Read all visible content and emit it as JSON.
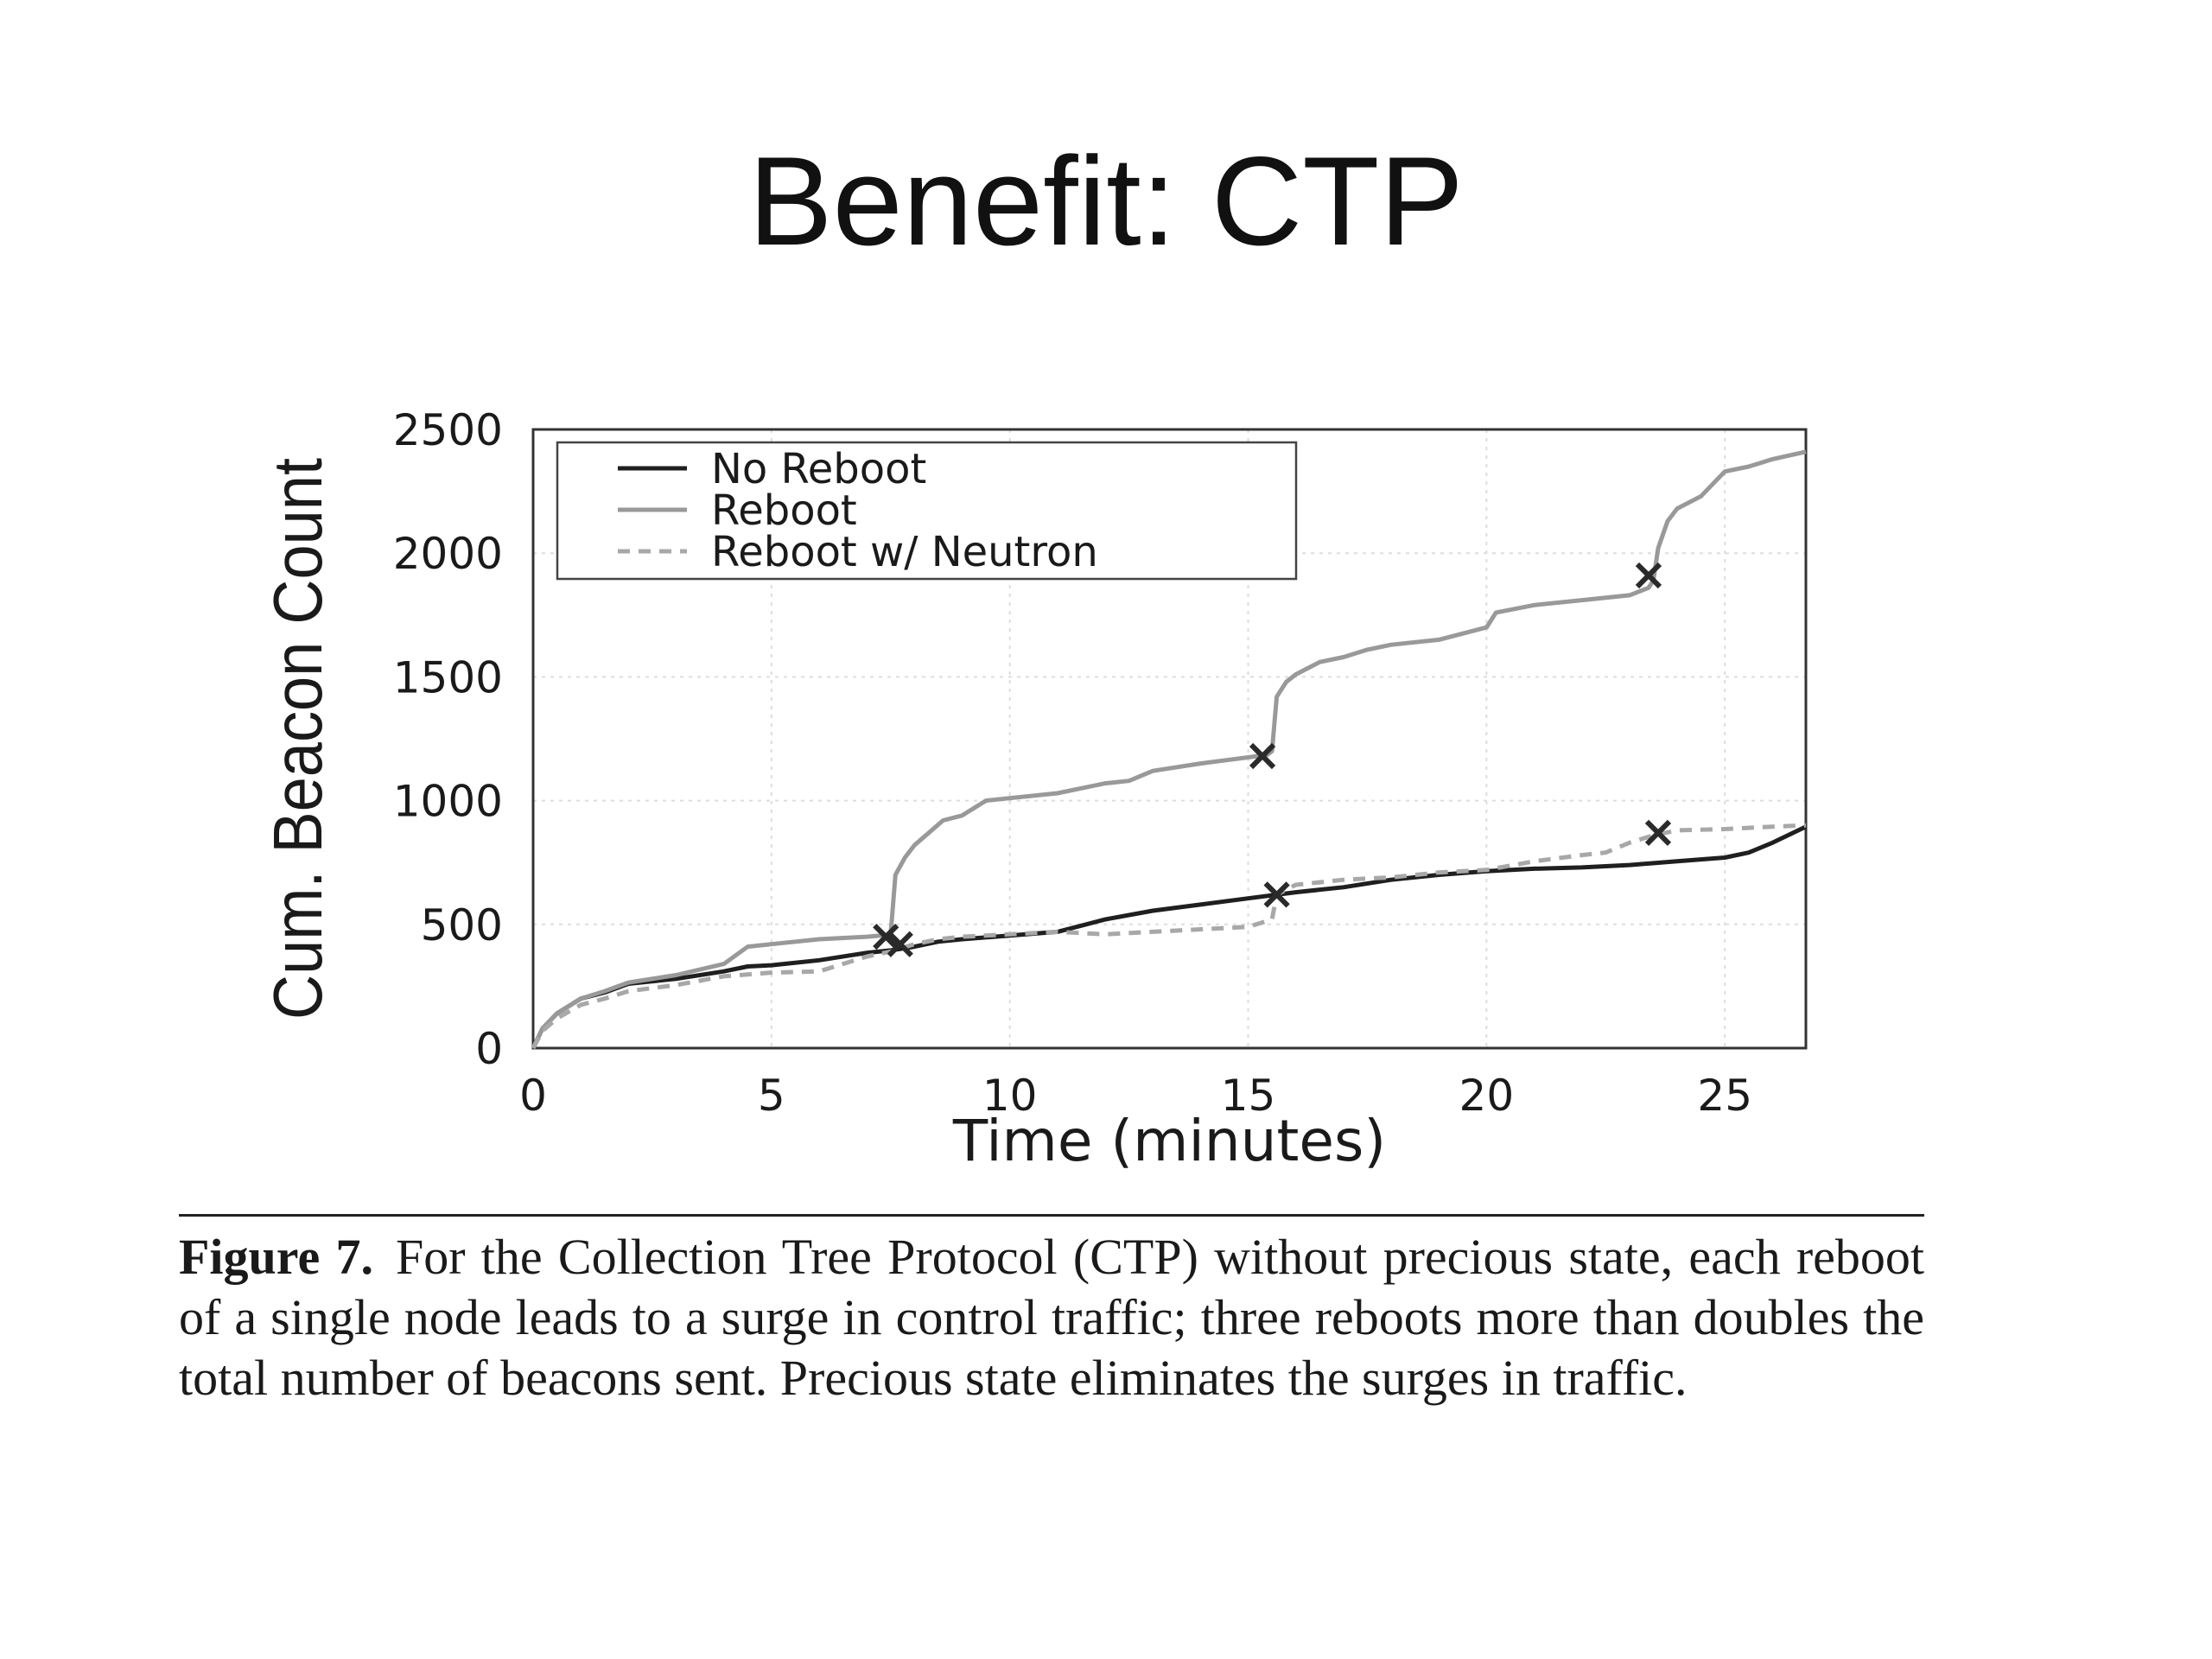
{
  "slide": {
    "title": "Benefit: CTP"
  },
  "chart_data": {
    "type": "line",
    "xlabel": "Time (minutes)",
    "ylabel": "Cum. Beacon Count",
    "xlim": [
      0,
      26.7
    ],
    "ylim": [
      0,
      2500
    ],
    "xticks": [
      0,
      5,
      10,
      15,
      20,
      25
    ],
    "yticks": [
      0,
      500,
      1000,
      1500,
      2000,
      2500
    ],
    "grid": true,
    "legend_position": "top-left",
    "series": [
      {
        "name": "No Reboot",
        "style": "solid",
        "color": "#1f1f1f",
        "x": [
          0,
          0.2,
          0.5,
          1,
          1.5,
          2,
          3,
          4,
          4.5,
          5,
          6,
          7,
          7.5,
          8,
          8.5,
          9,
          10,
          11,
          12,
          13,
          14,
          15,
          16,
          17,
          18,
          19,
          20,
          21,
          22,
          23,
          24,
          25,
          25.5,
          26,
          26.7
        ],
        "y": [
          0,
          80,
          140,
          200,
          225,
          260,
          280,
          310,
          330,
          335,
          355,
          385,
          395,
          410,
          430,
          440,
          455,
          470,
          520,
          555,
          580,
          605,
          630,
          650,
          680,
          700,
          715,
          725,
          730,
          740,
          755,
          770,
          790,
          830,
          895
        ]
      },
      {
        "name": "Reboot",
        "style": "solid",
        "color": "#999999",
        "x": [
          0,
          0.2,
          0.5,
          1,
          1.5,
          2,
          3,
          4,
          4.5,
          5,
          6,
          7,
          7.3,
          7.5,
          7.6,
          7.8,
          8,
          8.3,
          8.6,
          9,
          9.5,
          10,
          11,
          12,
          12.5,
          13,
          14,
          15,
          15.4,
          15.5,
          15.6,
          15.8,
          16,
          16.5,
          17,
          17.5,
          18,
          19,
          20,
          20.2,
          21,
          22,
          23,
          23.4,
          23.5,
          23.6,
          23.8,
          24,
          24.5,
          25,
          25.5,
          26,
          26.7
        ],
        "y": [
          0,
          80,
          140,
          200,
          230,
          265,
          295,
          340,
          410,
          420,
          440,
          450,
          455,
          460,
          700,
          770,
          820,
          870,
          920,
          940,
          1000,
          1010,
          1030,
          1070,
          1080,
          1120,
          1150,
          1175,
          1185,
          1200,
          1420,
          1480,
          1510,
          1560,
          1580,
          1610,
          1630,
          1650,
          1700,
          1760,
          1790,
          1810,
          1830,
          1860,
          1890,
          2020,
          2130,
          2180,
          2230,
          2330,
          2350,
          2380,
          2410
        ]
      },
      {
        "name": "Reboot w/ Neutron",
        "style": "dashed",
        "color": "#a8a8a8",
        "x": [
          0,
          0.2,
          0.5,
          1,
          1.5,
          2,
          3,
          4,
          5,
          6,
          6.5,
          7,
          7.5,
          8,
          8.5,
          9,
          10,
          11,
          12,
          13,
          14,
          15,
          15.5,
          15.6,
          16,
          17,
          18,
          19,
          20,
          21,
          22,
          22.5,
          23,
          23.5,
          24,
          25,
          26,
          26.7
        ],
        "y": [
          0,
          70,
          120,
          175,
          200,
          230,
          255,
          290,
          305,
          310,
          340,
          370,
          390,
          420,
          440,
          450,
          460,
          470,
          460,
          470,
          480,
          490,
          520,
          620,
          660,
          680,
          690,
          710,
          720,
          755,
          780,
          790,
          830,
          860,
          880,
          885,
          895,
          900
        ]
      }
    ],
    "markers": {
      "symbol": "x",
      "points": [
        {
          "x": 7.4,
          "y": 450
        },
        {
          "x": 7.7,
          "y": 420
        },
        {
          "x": 15.3,
          "y": 1180
        },
        {
          "x": 15.6,
          "y": 620
        },
        {
          "x": 23.4,
          "y": 1910
        },
        {
          "x": 23.6,
          "y": 870
        }
      ]
    }
  },
  "caption": {
    "label": "Figure 7.",
    "text": "For the Collection Tree Protocol (CTP) without precious state, each reboot of a single node leads to a surge in control traffic; three reboots more than doubles the total number of beacons sent. Precious state eliminates the surges in traffic."
  }
}
